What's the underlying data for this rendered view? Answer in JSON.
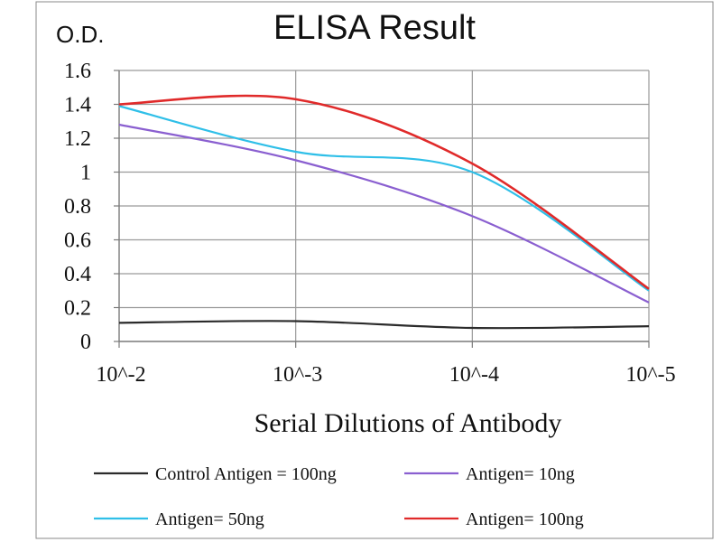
{
  "chart_data": {
    "type": "line",
    "title": "ELISA Result",
    "ylabel": "O.D.",
    "xlabel": "Serial Dilutions  of Antibody",
    "x": [
      "10^-2",
      "10^-3",
      "10^-4",
      "10^-5"
    ],
    "ylim": [
      0,
      1.6
    ],
    "yticks": [
      "0",
      "0.2",
      "0.4",
      "0.6",
      "0.8",
      "1",
      "1.2",
      "1.4",
      "1.6"
    ],
    "grid": true,
    "legend_position": "bottom",
    "series": [
      {
        "name": "Control Antigen = 100ng",
        "color": "#2b2b2b",
        "values": [
          0.11,
          0.12,
          0.08,
          0.09
        ]
      },
      {
        "name": "Antigen= 10ng",
        "color": "#8a5fd0",
        "values": [
          1.28,
          1.07,
          0.74,
          0.23
        ]
      },
      {
        "name": "Antigen= 50ng",
        "color": "#2fbfe8",
        "values": [
          1.39,
          1.12,
          1.0,
          0.3
        ]
      },
      {
        "name": "Antigen= 100ng",
        "color": "#e02a2a",
        "values": [
          1.4,
          1.43,
          1.05,
          0.31
        ]
      }
    ]
  }
}
